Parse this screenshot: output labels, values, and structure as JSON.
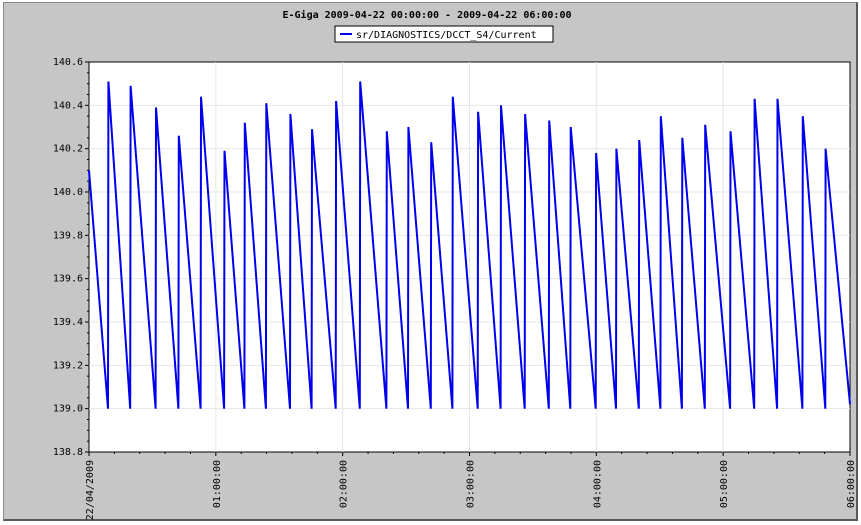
{
  "chart_data": {
    "type": "line",
    "title": "E-Giga 2009-04-22 00:00:00 - 2009-04-22 06:00:00",
    "xlabel": "",
    "ylabel": "",
    "ylim": [
      138.8,
      140.6
    ],
    "yticks": [
      "138.8",
      "139.0",
      "139.2",
      "139.4",
      "139.6",
      "139.8",
      "140.0",
      "140.2",
      "140.4",
      "140.6"
    ],
    "xlim_hours": [
      0,
      6
    ],
    "xticks": [
      {
        "h": 0,
        "label": "22/04/2009"
      },
      {
        "h": 1,
        "label": "01:00:00"
      },
      {
        "h": 2,
        "label": "02:00:00"
      },
      {
        "h": 3,
        "label": "03:00:00"
      },
      {
        "h": 4,
        "label": "04:00:00"
      },
      {
        "h": 5,
        "label": "05:00:00"
      },
      {
        "h": 6,
        "label": "06:00:00"
      }
    ],
    "grid": true,
    "legend_position": "top-center",
    "colors": {
      "series": "#0000ee",
      "plot_bg": "#ffffff",
      "frame_bg": "#c6c6c6",
      "grid": "#e6e6e6"
    },
    "series": [
      {
        "name": "sr/DIAGNOSTICS/DCCT_S4/Current",
        "units_x": "hours",
        "start": {
          "t": 0.0,
          "y": 140.1
        },
        "cycles": [
          {
            "t_low": 0.15,
            "t_peak": 0.153,
            "peak": 140.51
          },
          {
            "t_low": 0.325,
            "t_peak": 0.328,
            "peak": 140.49
          },
          {
            "t_low": 0.525,
            "t_peak": 0.528,
            "peak": 140.39
          },
          {
            "t_low": 0.705,
            "t_peak": 0.708,
            "peak": 140.26
          },
          {
            "t_low": 0.88,
            "t_peak": 0.883,
            "peak": 140.44
          },
          {
            "t_low": 1.065,
            "t_peak": 1.068,
            "peak": 140.19
          },
          {
            "t_low": 1.225,
            "t_peak": 1.228,
            "peak": 140.32
          },
          {
            "t_low": 1.395,
            "t_peak": 1.398,
            "peak": 140.41
          },
          {
            "t_low": 1.585,
            "t_peak": 1.588,
            "peak": 140.36
          },
          {
            "t_low": 1.755,
            "t_peak": 1.758,
            "peak": 140.29
          },
          {
            "t_low": 1.945,
            "t_peak": 1.948,
            "peak": 140.42
          },
          {
            "t_low": 2.135,
            "t_peak": 2.138,
            "peak": 140.51
          },
          {
            "t_low": 2.345,
            "t_peak": 2.348,
            "peak": 140.28
          },
          {
            "t_low": 2.515,
            "t_peak": 2.518,
            "peak": 140.3
          },
          {
            "t_low": 2.695,
            "t_peak": 2.698,
            "peak": 140.23
          },
          {
            "t_low": 2.865,
            "t_peak": 2.868,
            "peak": 140.44
          },
          {
            "t_low": 3.065,
            "t_peak": 3.068,
            "peak": 140.37
          },
          {
            "t_low": 3.245,
            "t_peak": 3.248,
            "peak": 140.4
          },
          {
            "t_low": 3.435,
            "t_peak": 3.438,
            "peak": 140.36
          },
          {
            "t_low": 3.625,
            "t_peak": 3.628,
            "peak": 140.33
          },
          {
            "t_low": 3.795,
            "t_peak": 3.798,
            "peak": 140.3
          },
          {
            "t_low": 3.995,
            "t_peak": 3.998,
            "peak": 140.18
          },
          {
            "t_low": 4.155,
            "t_peak": 4.158,
            "peak": 140.2
          },
          {
            "t_low": 4.335,
            "t_peak": 4.338,
            "peak": 140.24
          },
          {
            "t_low": 4.505,
            "t_peak": 4.508,
            "peak": 140.35
          },
          {
            "t_low": 4.675,
            "t_peak": 4.678,
            "peak": 140.25
          },
          {
            "t_low": 4.855,
            "t_peak": 4.858,
            "peak": 140.31
          },
          {
            "t_low": 5.055,
            "t_peak": 5.058,
            "peak": 140.28
          },
          {
            "t_low": 5.245,
            "t_peak": 5.248,
            "peak": 140.43
          },
          {
            "t_low": 5.425,
            "t_peak": 5.428,
            "peak": 140.43
          },
          {
            "t_low": 5.625,
            "t_peak": 5.628,
            "peak": 140.35
          },
          {
            "t_low": 5.805,
            "t_peak": 5.808,
            "peak": 140.2
          }
        ],
        "low_value": 139.0,
        "end": {
          "t": 6.0,
          "y": 139.02
        }
      }
    ]
  }
}
